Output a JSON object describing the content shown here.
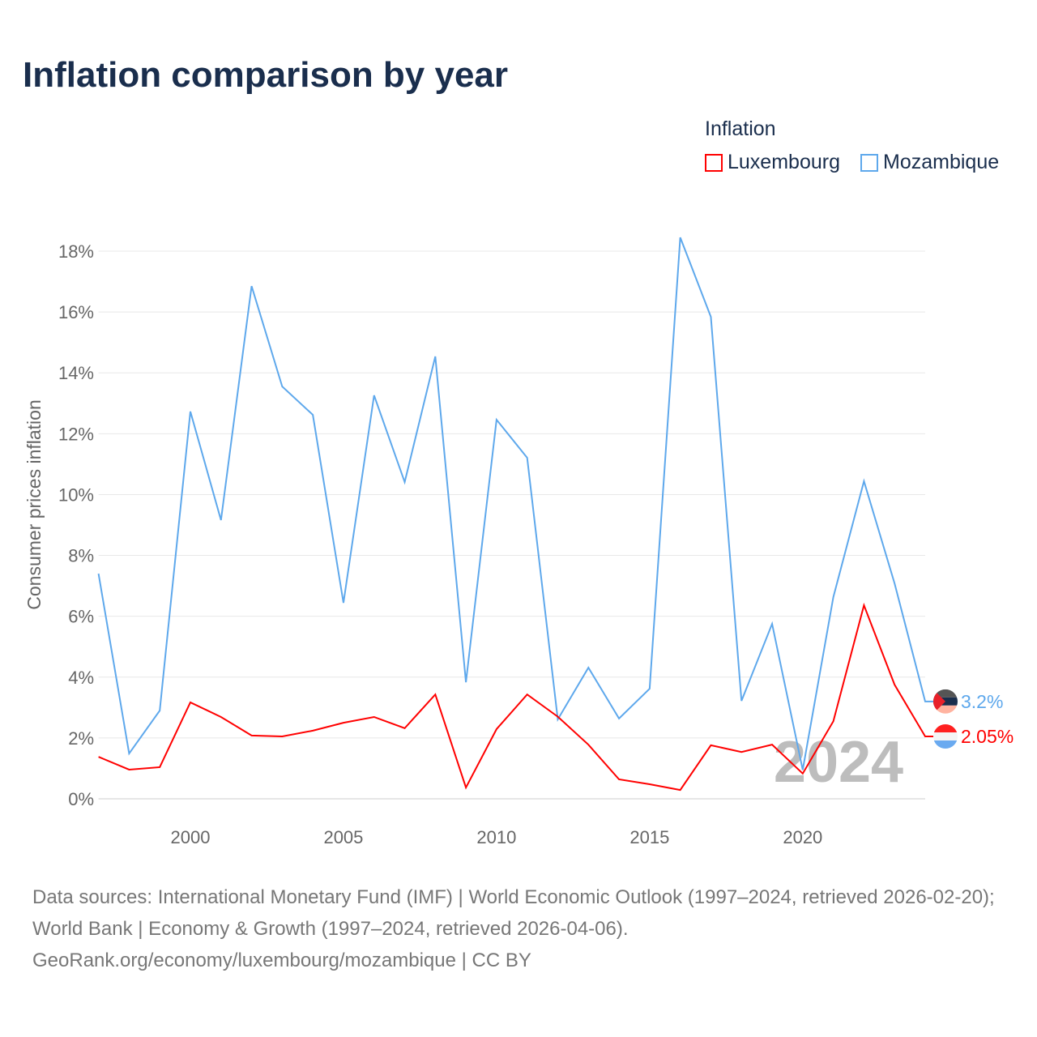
{
  "chart_data": {
    "type": "line",
    "title": "Inflation comparison by year",
    "legend_title": "Inflation",
    "ylabel": "Consumer prices inflation",
    "xlabel": "",
    "ylim": [
      0,
      18
    ],
    "xlim": [
      1997,
      2024
    ],
    "yticks": [
      0,
      2,
      4,
      6,
      8,
      10,
      12,
      14,
      16,
      18
    ],
    "ytick_labels": [
      "0%",
      "2%",
      "4%",
      "6%",
      "8%",
      "10%",
      "12%",
      "14%",
      "16%",
      "18%"
    ],
    "xticks": [
      2000,
      2005,
      2010,
      2015,
      2020
    ],
    "xtick_labels": [
      "2000",
      "2005",
      "2010",
      "2015",
      "2020"
    ],
    "grid": true,
    "legend_position": "top-right",
    "watermark_year": "2024",
    "x": [
      1997,
      1998,
      1999,
      2000,
      2001,
      2002,
      2003,
      2004,
      2005,
      2006,
      2007,
      2008,
      2009,
      2010,
      2011,
      2012,
      2013,
      2014,
      2015,
      2016,
      2017,
      2018,
      2019,
      2020,
      2021,
      2022,
      2023,
      2024
    ],
    "series": [
      {
        "name": "Luxembourg",
        "color": "#ff0000",
        "end_label": "2.05%",
        "values": [
          1.38,
          0.96,
          1.04,
          3.17,
          2.69,
          2.08,
          2.05,
          2.24,
          2.5,
          2.69,
          2.32,
          3.43,
          0.37,
          2.29,
          3.43,
          2.7,
          1.78,
          0.64,
          0.48,
          0.29,
          1.76,
          1.54,
          1.78,
          0.83,
          2.55,
          6.36,
          3.75,
          2.05
        ]
      },
      {
        "name": "Mozambique",
        "color": "#5ea8ec",
        "end_label": "3.2%",
        "values": [
          7.4,
          1.49,
          2.9,
          12.73,
          9.16,
          16.85,
          13.55,
          12.62,
          6.44,
          13.26,
          10.41,
          14.54,
          3.83,
          12.46,
          11.21,
          2.61,
          4.31,
          2.64,
          3.62,
          18.45,
          15.84,
          3.22,
          5.75,
          0.95,
          6.63,
          10.44,
          7.08,
          3.2
        ]
      }
    ]
  },
  "footer": {
    "sources": "Data sources: International Monetary Fund (IMF) | World Economic Outlook (1997–2024, retrieved 2026-02-20); World Bank | Economy & Growth (1997–2024, retrieved 2026-04-06).",
    "credit": "GeoRank.org/economy/luxembourg/mozambique | CC BY"
  }
}
